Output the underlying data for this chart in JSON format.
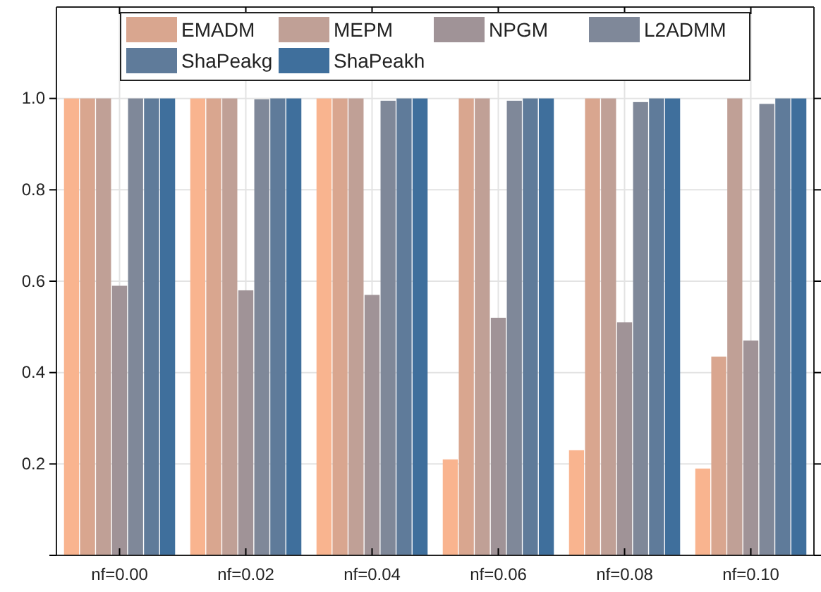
{
  "chart_data": {
    "type": "bar",
    "categories": [
      "nf=0.00",
      "nf=0.02",
      "nf=0.04",
      "nf=0.06",
      "nf=0.08",
      "nf=0.10"
    ],
    "series": [
      {
        "color": "#f9b48f",
        "values": [
          1.0,
          1.0,
          1.0,
          0.21,
          0.23,
          0.19
        ]
      },
      {
        "name": "EMADM",
        "color": "#d9a68f",
        "values": [
          1.0,
          1.0,
          1.0,
          1.0,
          1.0,
          0.435
        ]
      },
      {
        "name": "MEPM",
        "color": "#c0a096",
        "values": [
          1.0,
          1.0,
          1.0,
          1.0,
          1.0,
          1.0
        ]
      },
      {
        "name": "NPGM",
        "color": "#a09397",
        "values": [
          0.59,
          0.58,
          0.57,
          0.52,
          0.51,
          0.47
        ]
      },
      {
        "name": "L2ADMM",
        "color": "#7f8899",
        "values": [
          1.0,
          0.998,
          0.995,
          0.995,
          0.992,
          0.988
        ]
      },
      {
        "name": "ShaPeakg",
        "color": "#5f7b9a",
        "values": [
          1.0,
          1.0,
          1.0,
          1.0,
          1.0,
          1.0
        ]
      },
      {
        "name": "ShaPeakh",
        "color": "#3f6f9c",
        "values": [
          1.0,
          1.0,
          1.0,
          1.0,
          1.0,
          1.0
        ]
      }
    ],
    "ylim": [
      0,
      1.2
    ],
    "yticks": [
      {
        "value": 0,
        "label": null
      },
      {
        "value": 0.2,
        "label": "0.2"
      },
      {
        "value": 0.4,
        "label": "0.4"
      },
      {
        "value": 0.6,
        "label": "0.6"
      },
      {
        "value": 0.8,
        "label": "0.8"
      },
      {
        "value": 1,
        "label": "1.0"
      }
    ],
    "grid": true,
    "legend": "top"
  }
}
